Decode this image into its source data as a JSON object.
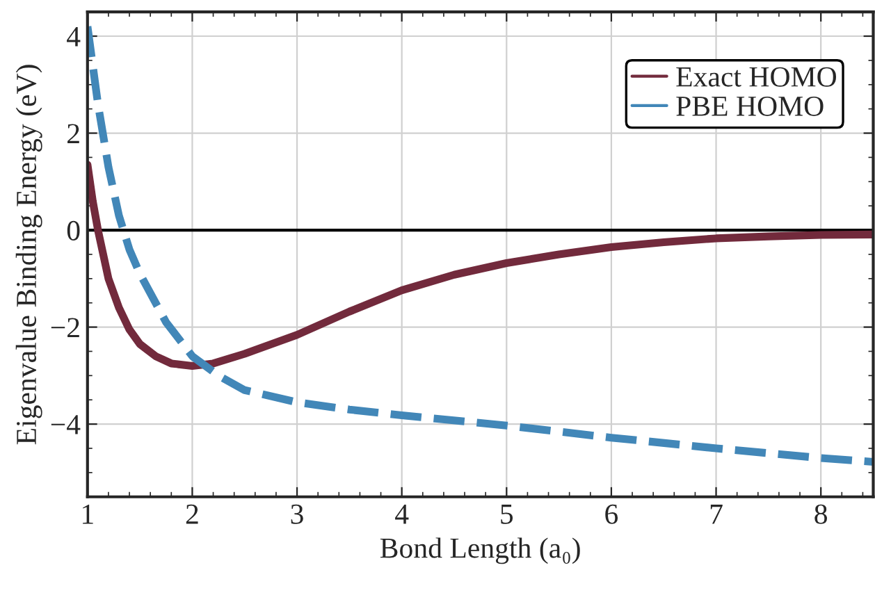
{
  "chart_data": {
    "type": "line",
    "xlabel": "Bond Length (a₀)",
    "ylabel": "Eigenvalue Binding Energy (eV)",
    "xlim": [
      1,
      8.5
    ],
    "ylim": [
      -5.5,
      4.5
    ],
    "xticks": [
      1,
      2,
      3,
      4,
      5,
      6,
      7,
      8
    ],
    "yticks": [
      {
        "value": -4,
        "label": "−4"
      },
      {
        "value": -2,
        "label": "−2"
      },
      0,
      2,
      4
    ],
    "grid": true,
    "legend": "top right",
    "ref_lines": [
      {
        "axis": "y",
        "value": 0,
        "color": "#000000",
        "line_style": "solid"
      }
    ],
    "series": [
      {
        "name": "Exact HOMO",
        "color": "#722a3c",
        "line_style": "solid",
        "x": [
          1.0,
          1.05,
          1.1,
          1.2,
          1.3,
          1.4,
          1.5,
          1.65,
          1.8,
          2.0,
          2.2,
          2.5,
          3.0,
          3.5,
          4.0,
          4.5,
          5.0,
          5.5,
          6.0,
          6.5,
          7.0,
          7.5,
          8.0,
          8.5
        ],
        "values": [
          1.35,
          0.6,
          0.0,
          -1.0,
          -1.6,
          -2.05,
          -2.35,
          -2.6,
          -2.75,
          -2.8,
          -2.75,
          -2.55,
          -2.16,
          -1.68,
          -1.24,
          -0.92,
          -0.68,
          -0.5,
          -0.35,
          -0.25,
          -0.17,
          -0.13,
          -0.1,
          -0.09
        ]
      },
      {
        "name": "PBE HOMO",
        "color": "#4287b8",
        "line_style": "dashed",
        "x": [
          1.0,
          1.1,
          1.2,
          1.3,
          1.4,
          1.5,
          1.75,
          2.0,
          2.25,
          2.5,
          3.0,
          3.5,
          4.0,
          5.0,
          6.0,
          7.0,
          8.0,
          8.5
        ],
        "values": [
          4.2,
          2.6,
          1.3,
          0.3,
          -0.4,
          -0.9,
          -1.9,
          -2.6,
          -3.0,
          -3.3,
          -3.55,
          -3.7,
          -3.82,
          -4.03,
          -4.28,
          -4.5,
          -4.7,
          -4.78
        ]
      }
    ]
  }
}
